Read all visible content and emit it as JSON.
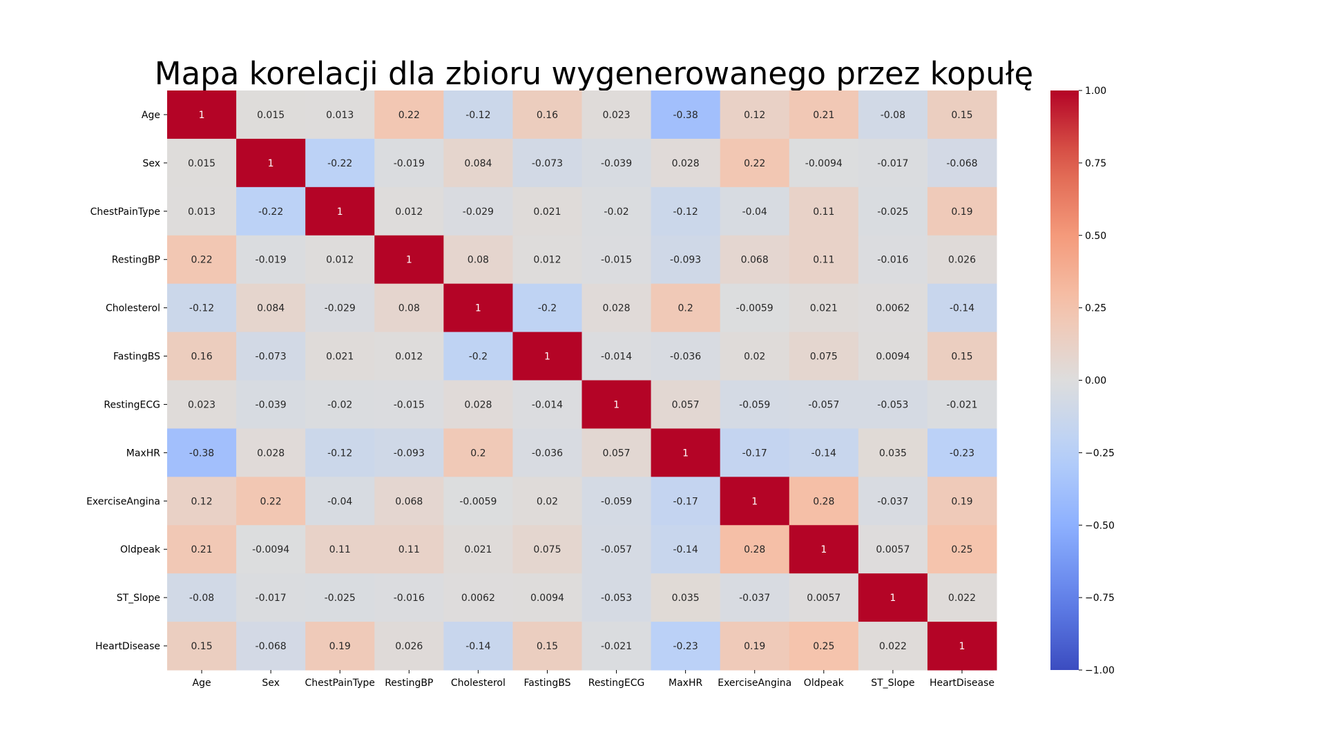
{
  "chart_data": {
    "type": "heatmap",
    "title": "Mapa korelacji dla zbioru wygenerowanego przez kopułę",
    "xlabel": "",
    "ylabel": "",
    "colormap": "coolwarm",
    "vmin": -1.0,
    "vmax": 1.0,
    "colorbar_ticks": [
      "−1.00",
      "−0.75",
      "−0.50",
      "−0.25",
      "0.00",
      "0.25",
      "0.50",
      "0.75",
      "1.00"
    ],
    "colorbar_tick_values": [
      -1.0,
      -0.75,
      -0.5,
      -0.25,
      0.0,
      0.25,
      0.5,
      0.75,
      1.0
    ],
    "x_categories": [
      "Age",
      "Sex",
      "ChestPainType",
      "RestingBP",
      "Cholesterol",
      "FastingBS",
      "RestingECG",
      "MaxHR",
      "ExerciseAngina",
      "Oldpeak",
      "ST_Slope",
      "HeartDisease"
    ],
    "y_categories": [
      "Age",
      "Sex",
      "ChestPainType",
      "RestingBP",
      "Cholesterol",
      "FastingBS",
      "RestingECG",
      "MaxHR",
      "ExerciseAngina",
      "Oldpeak",
      "ST_Slope",
      "HeartDisease"
    ],
    "values": [
      [
        1,
        0.015,
        0.013,
        0.22,
        -0.12,
        0.16,
        0.023,
        -0.38,
        0.12,
        0.21,
        -0.08,
        0.15
      ],
      [
        0.015,
        1,
        -0.22,
        -0.019,
        0.084,
        -0.073,
        -0.039,
        0.028,
        0.22,
        -0.0094,
        -0.017,
        -0.068
      ],
      [
        0.013,
        -0.22,
        1,
        0.012,
        -0.029,
        0.021,
        -0.02,
        -0.12,
        -0.04,
        0.11,
        -0.025,
        0.19
      ],
      [
        0.22,
        -0.019,
        0.012,
        1,
        0.08,
        0.012,
        -0.015,
        -0.093,
        0.068,
        0.11,
        -0.016,
        0.026
      ],
      [
        -0.12,
        0.084,
        -0.029,
        0.08,
        1,
        -0.2,
        0.028,
        0.2,
        -0.0059,
        0.021,
        0.0062,
        -0.14
      ],
      [
        0.16,
        -0.073,
        0.021,
        0.012,
        -0.2,
        1,
        -0.014,
        -0.036,
        0.02,
        0.075,
        0.0094,
        0.15
      ],
      [
        0.023,
        -0.039,
        -0.02,
        -0.015,
        0.028,
        -0.014,
        1,
        0.057,
        -0.059,
        -0.057,
        -0.053,
        -0.021
      ],
      [
        -0.38,
        0.028,
        -0.12,
        -0.093,
        0.2,
        -0.036,
        0.057,
        1,
        -0.17,
        -0.14,
        0.035,
        -0.23
      ],
      [
        0.12,
        0.22,
        -0.04,
        0.068,
        -0.0059,
        0.02,
        -0.059,
        -0.17,
        1,
        0.28,
        -0.037,
        0.19
      ],
      [
        0.21,
        -0.0094,
        0.11,
        0.11,
        0.021,
        0.075,
        -0.057,
        -0.14,
        0.28,
        1,
        0.0057,
        0.25
      ],
      [
        -0.08,
        -0.017,
        -0.025,
        -0.016,
        0.0062,
        0.0094,
        -0.053,
        0.035,
        -0.037,
        0.0057,
        1,
        0.022
      ],
      [
        0.15,
        -0.068,
        0.19,
        0.026,
        -0.14,
        0.15,
        -0.021,
        -0.23,
        0.19,
        0.25,
        0.022,
        1
      ]
    ]
  }
}
